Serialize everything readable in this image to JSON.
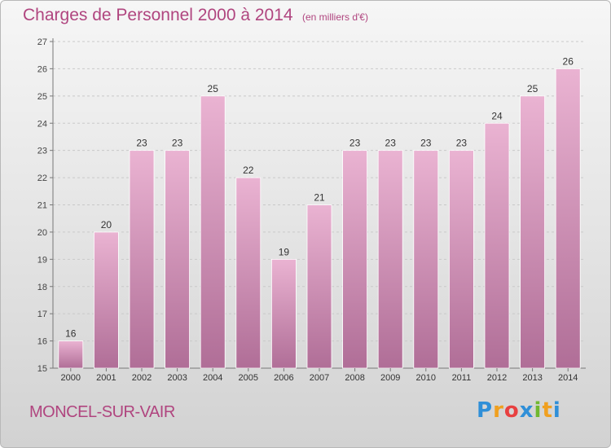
{
  "title": "Charges de Personnel 2000 à 2014",
  "subtitle": "(en milliers d'€)",
  "place": "MONCEL-SUR-VAIR",
  "logo": {
    "letters": [
      "P",
      "r",
      "o",
      "x",
      "i",
      "t",
      "i"
    ],
    "colors": [
      "#2f8fd8",
      "#f0a020",
      "#e84040",
      "#2f8fd8",
      "#70b830",
      "#f0a020",
      "#2f8fd8"
    ]
  },
  "colors": {
    "bar_light": "#eab3d2",
    "bar_dark": "#b06e97",
    "accent": "#b0457f"
  },
  "chart_data": {
    "type": "bar",
    "categories": [
      "2000",
      "2001",
      "2002",
      "2003",
      "2004",
      "2005",
      "2006",
      "2007",
      "2008",
      "2009",
      "2010",
      "2011",
      "2012",
      "2013",
      "2014"
    ],
    "values": [
      16,
      20,
      23,
      23,
      25,
      22,
      19,
      21,
      23,
      23,
      23,
      23,
      24,
      25,
      26
    ],
    "data_labels": [
      "16",
      "20",
      "23",
      "23",
      "25",
      "22",
      "19",
      "21",
      "23",
      "23",
      "23",
      "23",
      "24",
      "25",
      "26"
    ],
    "ylim": [
      15,
      27
    ],
    "yticks": [
      15,
      16,
      17,
      18,
      19,
      20,
      21,
      22,
      23,
      24,
      25,
      26,
      27
    ],
    "grid": true,
    "legend": "none"
  }
}
